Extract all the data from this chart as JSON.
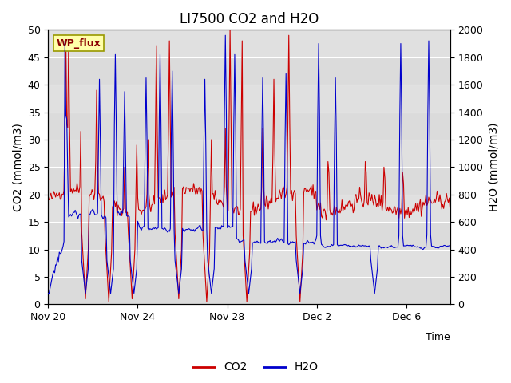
{
  "title": "LI7500 CO2 and H2O",
  "ylabel_left": "CO2 (mmol/m3)",
  "ylabel_right": "H2O (mmol/m3)",
  "xlabel": "Time",
  "ylim_left": [
    0,
    50
  ],
  "ylim_right": [
    0,
    2000
  ],
  "yticks_left": [
    0,
    5,
    10,
    15,
    20,
    25,
    30,
    35,
    40,
    45,
    50
  ],
  "yticks_right": [
    0,
    200,
    400,
    600,
    800,
    1000,
    1200,
    1400,
    1600,
    1800,
    2000
  ],
  "xtick_labels": [
    "Nov 20",
    "Nov 24",
    "Nov 28",
    "Dec 2",
    "Dec 6"
  ],
  "xtick_positions": [
    0,
    96,
    192,
    288,
    384
  ],
  "total_points": 432,
  "fig_bg_color": "#ffffff",
  "plot_bg_color": "#e0e0e0",
  "co2_color": "#cc0000",
  "h2o_color": "#0000cc",
  "legend_co2": "CO2",
  "legend_h2o": "H2O",
  "annotation_text": "WP_flux",
  "annotation_bg": "#ffffaa",
  "annotation_border": "#999900",
  "title_fontsize": 12,
  "label_fontsize": 10,
  "tick_fontsize": 9,
  "legend_fontsize": 10,
  "grid_color": "#ffffff",
  "seed": 42
}
